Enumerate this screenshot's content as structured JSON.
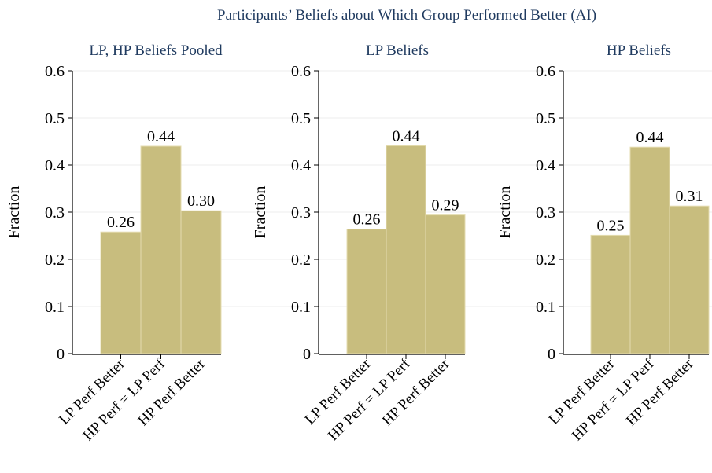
{
  "chart_data": {
    "title": "Participants’ Beliefs about Which Group Performed Better (AI)",
    "panels": [
      {
        "type": "bar",
        "title": "LP, HP Beliefs Pooled",
        "ylabel": "Fraction",
        "ylim": [
          0,
          0.6
        ],
        "yticks": [
          "0",
          "0.1",
          "0.2",
          "0.3",
          "0.4",
          "0.5",
          "0.6"
        ],
        "categories": [
          "LP Perf Better",
          "HP Perf = LP Perf",
          "HP Perf Better"
        ],
        "values": [
          0.258,
          0.44,
          0.303
        ],
        "labels": [
          "0.26",
          "0.44",
          "0.30"
        ]
      },
      {
        "type": "bar",
        "title": "LP Beliefs",
        "ylabel": "Fraction",
        "ylim": [
          0,
          0.6
        ],
        "yticks": [
          "0",
          "0.1",
          "0.2",
          "0.3",
          "0.4",
          "0.5",
          "0.6"
        ],
        "categories": [
          "LP Perf Better",
          "HP Perf = LP Perf",
          "HP Perf Better"
        ],
        "values": [
          0.264,
          0.441,
          0.294
        ],
        "labels": [
          "0.26",
          "0.44",
          "0.29"
        ]
      },
      {
        "type": "bar",
        "title": "HP Beliefs",
        "ylabel": "Fraction",
        "ylim": [
          0,
          0.6
        ],
        "yticks": [
          "0",
          "0.1",
          "0.2",
          "0.3",
          "0.4",
          "0.5",
          "0.6"
        ],
        "categories": [
          "LP Perf Better",
          "HP Perf = LP Perf",
          "HP Perf Better"
        ],
        "values": [
          0.251,
          0.438,
          0.313
        ],
        "labels": [
          "0.25",
          "0.44",
          "0.31"
        ]
      }
    ],
    "grid": true,
    "bar_color": "#c8bd7e"
  }
}
